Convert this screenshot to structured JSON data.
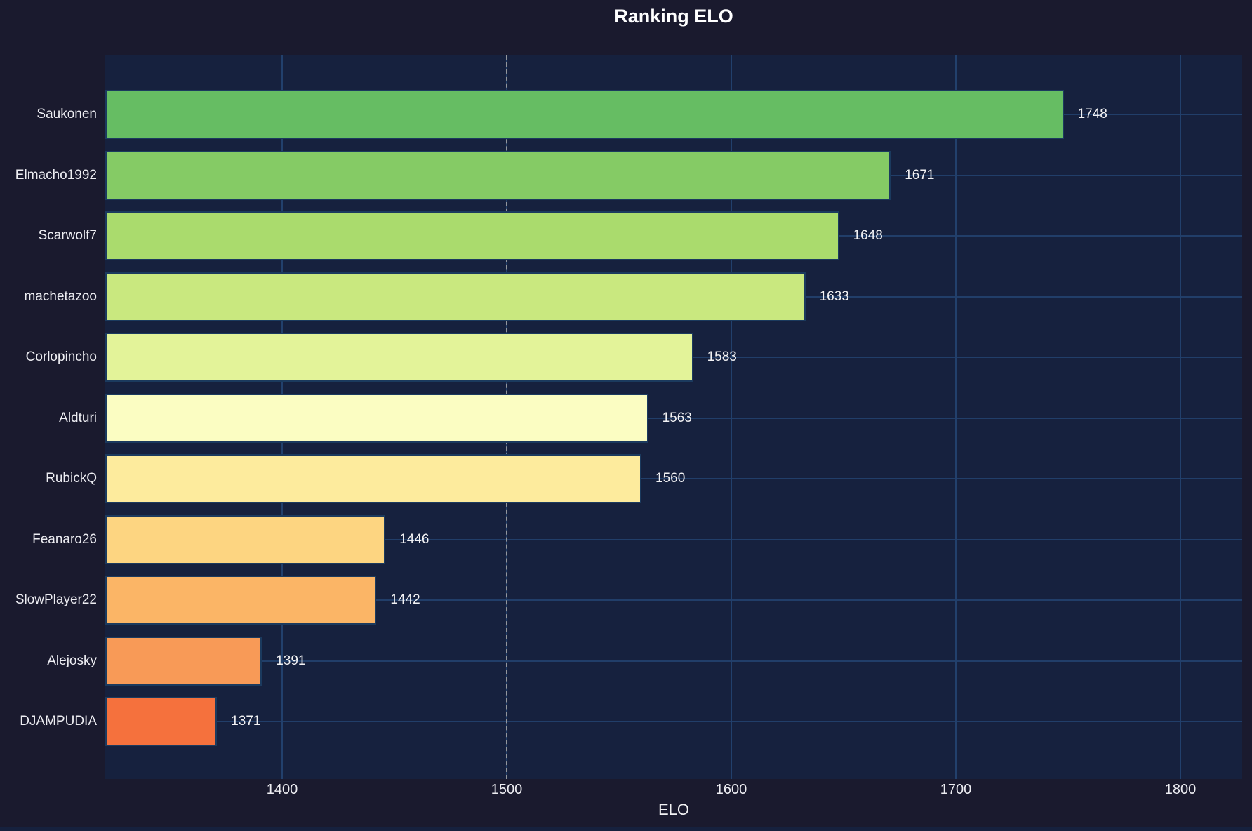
{
  "title": "Ranking ELO",
  "colors": {
    "figure_bg": "#1a1a2e",
    "plot_bg": "#16213e",
    "grid": "#22406c",
    "bar_edge": "#1b3a5e",
    "reference_line": "#a6a6a6",
    "text": "#f2f2f4"
  },
  "chart_data": {
    "type": "bar",
    "orientation": "horizontal",
    "title": "Ranking ELO",
    "xlabel": "ELO",
    "categories": [
      "Saukonen",
      "Elmacho1992",
      "Scarwolf7",
      "machetazoo",
      "Corlopincho",
      "Aldturi",
      "RubickQ",
      "Feanaro26",
      "SlowPlayer22",
      "Alejosky",
      "DJAMPUDIA"
    ],
    "values": [
      1748,
      1671,
      1648,
      1633,
      1583,
      1563,
      1560,
      1446,
      1442,
      1391,
      1371
    ],
    "bar_colors": [
      "#66bd63",
      "#85cb65",
      "#aadb6d",
      "#c9e87f",
      "#e3f399",
      "#fbfdc2",
      "#fdeb9d",
      "#fdd581",
      "#fbb566",
      "#f89a57",
      "#f5713d"
    ],
    "value_labels": [
      "1748",
      "1671",
      "1648",
      "1633",
      "1583",
      "1563",
      "1560",
      "1446",
      "1442",
      "1391",
      "1371"
    ],
    "xlim": [
      1321.25,
      1827.5
    ],
    "xticks": [
      1400,
      1500,
      1600,
      1700,
      1800
    ],
    "xtick_labels": [
      "1400",
      "1500",
      "1600",
      "1700",
      "1800"
    ],
    "reference_line": {
      "x": 1500,
      "style": "dashed"
    },
    "grid": true,
    "legend": false
  }
}
